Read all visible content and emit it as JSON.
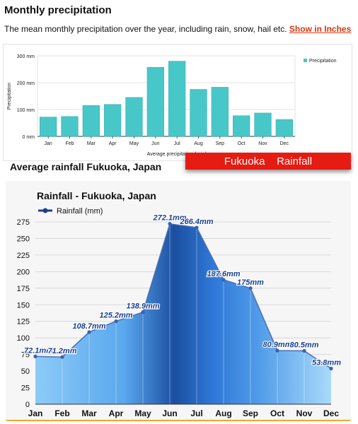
{
  "header": {
    "title": "Monthly precipitation",
    "description": "The mean monthly precipitation over the year, including rain, snow, hail etc.",
    "link_label": "Show in Inches"
  },
  "caption": "Average rainfall Fukuoka, Japan",
  "banner": "Fukuoka    Rainfall",
  "colors": {
    "top_bar": "#48c7c9",
    "bottom_fill_light": "#8ccbf7",
    "bottom_fill_dark": "#1b4fa0",
    "bottom_line": "#4a6db8",
    "banner": "#e61b12",
    "link": "#d9340f"
  },
  "chart_data": [
    {
      "type": "bar",
      "ylabel": "Precipitation",
      "xlabel": "Average precipitation (rain/sno",
      "legend": "Precipitation",
      "legend_position": "top-right",
      "categories": [
        "Jan",
        "Feb",
        "Mar",
        "Apr",
        "May",
        "Jun",
        "Jul",
        "Aug",
        "Sep",
        "Oct",
        "Nov",
        "Dec"
      ],
      "values": [
        72,
        74,
        115,
        119,
        145,
        257,
        280,
        175,
        183,
        77,
        87,
        63
      ],
      "ylim": [
        0,
        300
      ],
      "yticks": [
        0,
        100,
        200,
        300
      ],
      "ytick_labels": [
        "0 mm",
        "100 mm",
        "200 mm",
        "300 mm"
      ],
      "grid": true
    },
    {
      "type": "area",
      "title": "Rainfall - Fukuoka, Japan",
      "legend": "Rainfall (mm)",
      "legend_position": "top-left",
      "categories": [
        "Jan",
        "Feb",
        "Mar",
        "Apr",
        "May",
        "Jun",
        "Jul",
        "Aug",
        "Sep",
        "Oct",
        "Nov",
        "Dec"
      ],
      "values": [
        72.1,
        71.2,
        108.7,
        125.2,
        138.9,
        272.1,
        266.4,
        187.6,
        175,
        80.9,
        80.5,
        53.8
      ],
      "data_labels": [
        "72.1mm",
        "71.2mm",
        "108.7mm",
        "125.2mm",
        "138.9mm",
        "272.1mm",
        "266.4mm",
        "187.6mm",
        "175mm",
        "80.9mm",
        "80.5mm",
        "53.8mm"
      ],
      "ylim": [
        0,
        275
      ],
      "yticks": [
        0,
        25,
        50,
        75,
        100,
        125,
        150,
        175,
        200,
        225,
        250,
        275
      ],
      "grid": true
    }
  ]
}
